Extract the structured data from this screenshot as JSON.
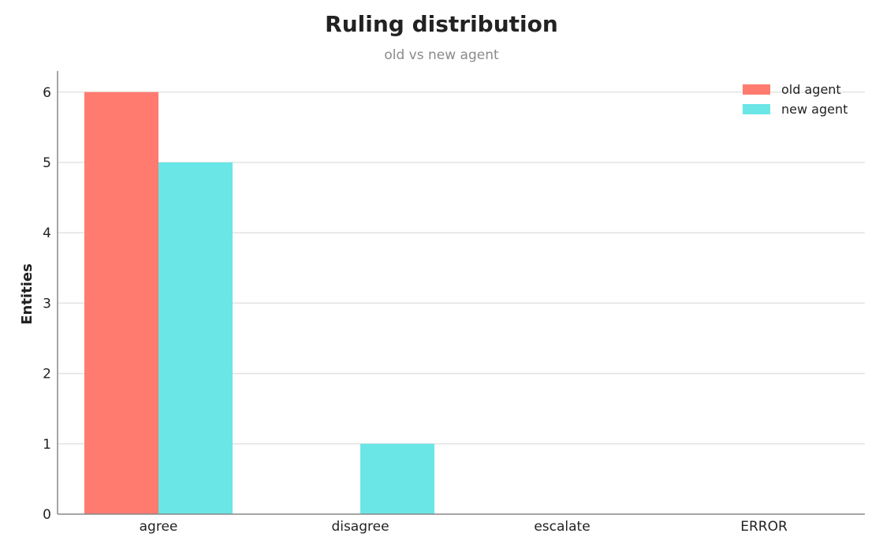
{
  "chart_data": {
    "type": "bar",
    "title": "Ruling distribution",
    "subtitle": "old vs new agent",
    "xlabel": "",
    "ylabel": "Entities",
    "categories": [
      "agree",
      "disagree",
      "escalate",
      "ERROR"
    ],
    "series": [
      {
        "name": "old agent",
        "values": [
          6,
          0,
          0,
          0
        ],
        "color": "#ff7b70"
      },
      {
        "name": "new agent",
        "values": [
          5,
          1,
          0,
          0
        ],
        "color": "#6ae6e6"
      }
    ],
    "ylim": [
      0,
      6.3
    ],
    "yticks": [
      0,
      1,
      2,
      3,
      4,
      5,
      6
    ],
    "grid": true,
    "legend_position": "top-right"
  }
}
